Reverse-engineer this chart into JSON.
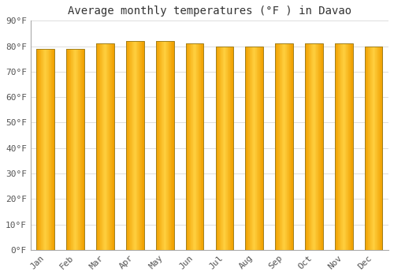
{
  "title": "Average monthly temperatures (°F ) in Davao",
  "months": [
    "Jan",
    "Feb",
    "Mar",
    "Apr",
    "May",
    "Jun",
    "Jul",
    "Aug",
    "Sep",
    "Oct",
    "Nov",
    "Dec"
  ],
  "values": [
    79,
    79,
    81,
    82,
    82,
    81,
    80,
    80,
    81,
    81,
    81,
    80
  ],
  "bar_color_center": "#FFD040",
  "bar_color_edge": "#F0A000",
  "bar_outline_color": "#A08020",
  "ylim": [
    0,
    90
  ],
  "yticks": [
    0,
    10,
    20,
    30,
    40,
    50,
    60,
    70,
    80,
    90
  ],
  "ytick_labels": [
    "0°F",
    "10°F",
    "20°F",
    "30°F",
    "40°F",
    "50°F",
    "60°F",
    "70°F",
    "80°F",
    "90°F"
  ],
  "background_color": "#FFFFFF",
  "grid_color": "#DDDDDD",
  "title_fontsize": 10,
  "tick_fontsize": 8,
  "font_family": "monospace",
  "bar_width": 0.6
}
